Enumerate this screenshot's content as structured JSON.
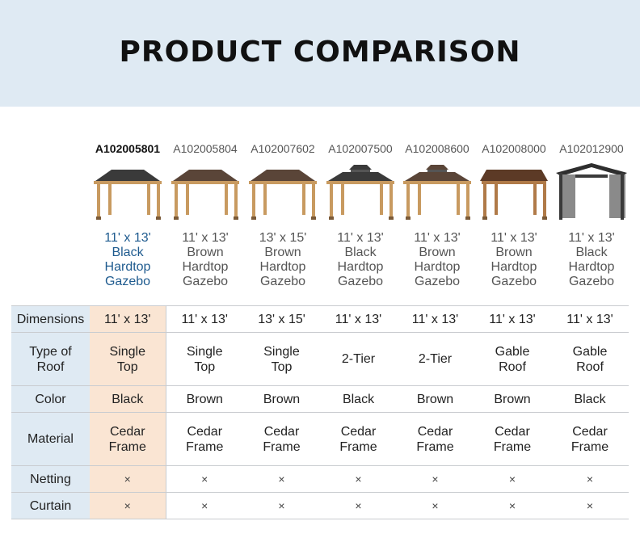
{
  "header": {
    "title": "PRODUCT COMPARISON"
  },
  "products": [
    {
      "sku": "A102005801",
      "name_lines": [
        "11' x 13'",
        "Black",
        "Hardtop",
        "Gazebo"
      ],
      "roof_color": "#3a3a3a",
      "roof_type": "single",
      "post_color": "#c89a60"
    },
    {
      "sku": "A102005804",
      "name_lines": [
        "11' x 13'",
        "Brown",
        "Hardtop",
        "Gazebo"
      ],
      "roof_color": "#5a4538",
      "roof_type": "single",
      "post_color": "#c89a60"
    },
    {
      "sku": "A102007602",
      "name_lines": [
        "13' x 15'",
        "Brown",
        "Hardtop",
        "Gazebo"
      ],
      "roof_color": "#5a4538",
      "roof_type": "single",
      "post_color": "#c89a60"
    },
    {
      "sku": "A102007500",
      "name_lines": [
        "11' x 13'",
        "Black",
        "Hardtop",
        "Gazebo"
      ],
      "roof_color": "#3a3a3a",
      "roof_type": "double",
      "post_color": "#c89a60"
    },
    {
      "sku": "A102008600",
      "name_lines": [
        "11' x 13'",
        "Brown",
        "Hardtop",
        "Gazebo"
      ],
      "roof_color": "#5a4538",
      "roof_type": "double",
      "post_color": "#c89a60"
    },
    {
      "sku": "A102008000",
      "name_lines": [
        "11' x 13'",
        "Brown",
        "Hardtop",
        "Gazebo"
      ],
      "roof_color": "#5c3a26",
      "roof_type": "gable",
      "post_color": "#b07a48"
    },
    {
      "sku": "A102012900",
      "name_lines": [
        "11' x 13'",
        "Black",
        "Hardtop",
        "Gazebo"
      ],
      "roof_color": "#2e2e2e",
      "roof_type": "gable-curtain",
      "post_color": "#b07a48"
    }
  ],
  "comparison": {
    "rows": [
      {
        "label_lines": [
          "Dimensions"
        ],
        "values": [
          [
            "11' x 13'"
          ],
          [
            "11' x 13'"
          ],
          [
            "13' x 15'"
          ],
          [
            "11' x 13'"
          ],
          [
            "11' x 13'"
          ],
          [
            "11' x 13'"
          ],
          [
            "11' x 13'"
          ]
        ]
      },
      {
        "label_lines": [
          "Type of",
          "Roof"
        ],
        "values": [
          [
            "Single",
            "Top"
          ],
          [
            "Single",
            "Top"
          ],
          [
            "Single",
            "Top"
          ],
          [
            "2-Tier"
          ],
          [
            "2-Tier"
          ],
          [
            "Gable",
            "Roof"
          ],
          [
            "Gable",
            "Roof"
          ]
        ]
      },
      {
        "label_lines": [
          "Color"
        ],
        "values": [
          [
            "Black"
          ],
          [
            "Brown"
          ],
          [
            "Brown"
          ],
          [
            "Black"
          ],
          [
            "Brown"
          ],
          [
            "Brown"
          ],
          [
            "Black"
          ]
        ]
      },
      {
        "label_lines": [
          "Material"
        ],
        "values": [
          [
            "Cedar",
            "Frame"
          ],
          [
            "Cedar",
            "Frame"
          ],
          [
            "Cedar",
            "Frame"
          ],
          [
            "Cedar",
            "Frame"
          ],
          [
            "Cedar",
            "Frame"
          ],
          [
            "Cedar",
            "Frame"
          ],
          [
            "Cedar",
            "Frame"
          ]
        ]
      },
      {
        "label_lines": [
          "Netting"
        ],
        "values": [
          [
            "×"
          ],
          [
            "×"
          ],
          [
            "×"
          ],
          [
            "×"
          ],
          [
            "×"
          ],
          [
            "×"
          ],
          [
            "×"
          ]
        ]
      },
      {
        "label_lines": [
          "Curtain"
        ],
        "values": [
          [
            "×"
          ],
          [
            "×"
          ],
          [
            "×"
          ],
          [
            "×"
          ],
          [
            "×"
          ],
          [
            "×"
          ],
          [
            "×"
          ]
        ]
      }
    ]
  },
  "colors": {
    "banner_bg": "#dfeaf3",
    "highlight_bg": "#fae5d3",
    "active_name": "#1f5b8f"
  }
}
